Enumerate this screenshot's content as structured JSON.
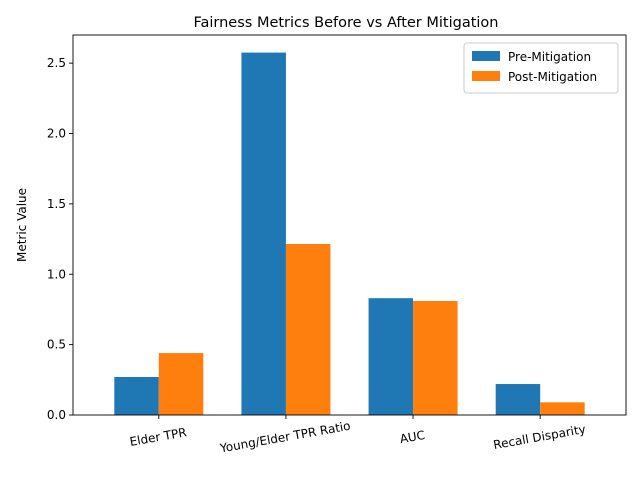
{
  "chart_data": {
    "type": "bar",
    "title": "Fairness Metrics Before vs After Mitigation",
    "xlabel": "",
    "ylabel": "Metric Value",
    "categories": [
      "Elder TPR",
      "Young/Elder TPR Ratio",
      "AUC",
      "Recall Disparity"
    ],
    "series": [
      {
        "name": "Pre-Mitigation",
        "color": "#1f77b4",
        "values": [
          0.27,
          2.575,
          0.83,
          0.22
        ]
      },
      {
        "name": "Post-Mitigation",
        "color": "#ff7f0e",
        "values": [
          0.44,
          1.215,
          0.81,
          0.09
        ]
      }
    ],
    "ylim": [
      0,
      2.7
    ],
    "yticks": [
      "0.0",
      "0.5",
      "1.0",
      "1.5",
      "2.0",
      "2.5"
    ],
    "grid": false,
    "legend_position": "top-right"
  }
}
